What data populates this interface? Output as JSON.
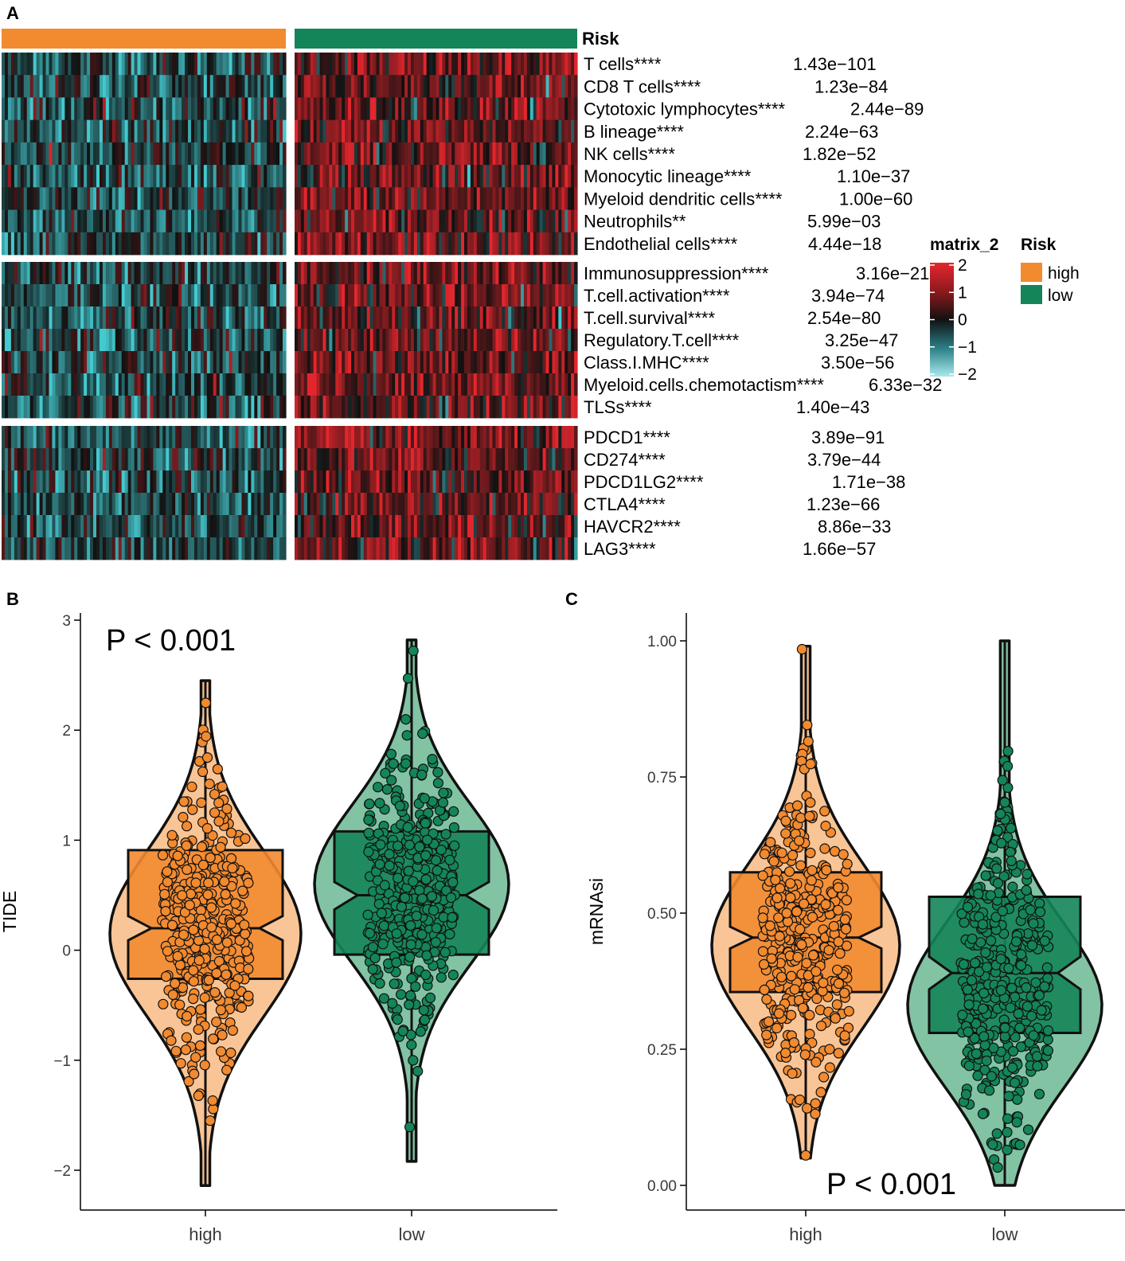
{
  "colors": {
    "high": "#F28A30",
    "high_light": "#F9C596",
    "low": "#148558",
    "low_light": "#82C3A3",
    "heat_neg": "#44C9CF",
    "heat_zero": "#111111",
    "heat_pos": "#E3262D"
  },
  "chart_data": [
    {
      "panel": "A",
      "type": "heatmap",
      "annotation_title": "Risk",
      "groups": [
        "high",
        "low"
      ],
      "row_blocks": [
        {
          "rows": [
            {
              "label": "T cells****",
              "p": "1.43e−101"
            },
            {
              "label": "CD8 T cells****",
              "p": "1.23e−84"
            },
            {
              "label": "Cytotoxic lymphocytes****",
              "p": "2.44e−89"
            },
            {
              "label": "B lineage****",
              "p": "2.24e−63"
            },
            {
              "label": "NK cells****",
              "p": "1.82e−52"
            },
            {
              "label": "Monocytic lineage****",
              "p": "1.10e−37"
            },
            {
              "label": "Myeloid dendritic cells****",
              "p": "1.00e−60"
            },
            {
              "label": "Neutrophils**",
              "p": "5.99e−03"
            },
            {
              "label": "Endothelial cells****",
              "p": "4.44e−18"
            }
          ]
        },
        {
          "rows": [
            {
              "label": "Immunosuppression****",
              "p": "3.16e−21"
            },
            {
              "label": "T.cell.activation****",
              "p": "3.94e−74"
            },
            {
              "label": "T.cell.survival****",
              "p": "2.54e−80"
            },
            {
              "label": "Regulatory.T.cell****",
              "p": "3.25e−47"
            },
            {
              "label": "Class.I.MHC****",
              "p": "3.50e−56"
            },
            {
              "label": "Myeloid.cells.chemotactism****",
              "p": "6.33e−32"
            },
            {
              "label": "TLSs****",
              "p": "1.40e−43"
            }
          ]
        },
        {
          "rows": [
            {
              "label": "PDCD1****",
              "p": "3.89e−91"
            },
            {
              "label": "CD274****",
              "p": "3.79e−44"
            },
            {
              "label": "PDCD1LG2****",
              "p": "1.71e−38"
            },
            {
              "label": "CTLA4****",
              "p": "1.23e−66"
            },
            {
              "label": "HAVCR2****",
              "p": "8.86e−33"
            },
            {
              "label": "LAG3****",
              "p": "1.66e−57"
            }
          ]
        }
      ],
      "color_legend": {
        "title": "matrix_2",
        "ticks": [
          "2",
          "1",
          "0",
          "−1",
          "−2"
        ],
        "range": [
          -2,
          2
        ]
      },
      "risk_legend": {
        "title": "Risk",
        "entries": [
          "high",
          "low"
        ]
      }
    },
    {
      "panel": "B",
      "type": "violin+box+jitter",
      "ylabel": "TIDE",
      "categories": [
        "high",
        "low"
      ],
      "yticks": [
        "3",
        "2",
        "1",
        "0",
        "−1",
        "−2"
      ],
      "ylim": [
        -2.2,
        3.1
      ],
      "annotation": "P < 0.001",
      "box": [
        {
          "group": "high",
          "q1": -0.26,
          "median": 0.2,
          "q3": 0.91,
          "notch_lo": 0.09,
          "notch_hi": 0.31,
          "min": -2.14,
          "max": 2.45
        },
        {
          "group": "low",
          "q1": -0.04,
          "median": 0.5,
          "q3": 1.08,
          "notch_lo": 0.37,
          "notch_hi": 0.62,
          "min": -1.92,
          "max": 2.82
        }
      ]
    },
    {
      "panel": "C",
      "type": "violin+box+jitter",
      "ylabel": "mRNAsi",
      "categories": [
        "high",
        "low"
      ],
      "yticks": [
        "1.00",
        "0.75",
        "0.50",
        "0.25",
        "0.00"
      ],
      "ylim": [
        -0.02,
        1.06
      ],
      "annotation": "P < 0.001",
      "box": [
        {
          "group": "high",
          "q1": 0.355,
          "median": 0.455,
          "q3": 0.575,
          "notch_lo": 0.435,
          "notch_hi": 0.475,
          "min": 0.05,
          "max": 0.99
        },
        {
          "group": "low",
          "q1": 0.28,
          "median": 0.39,
          "q3": 0.53,
          "notch_lo": 0.36,
          "notch_hi": 0.42,
          "min": 0.0,
          "max": 1.0
        }
      ]
    }
  ]
}
